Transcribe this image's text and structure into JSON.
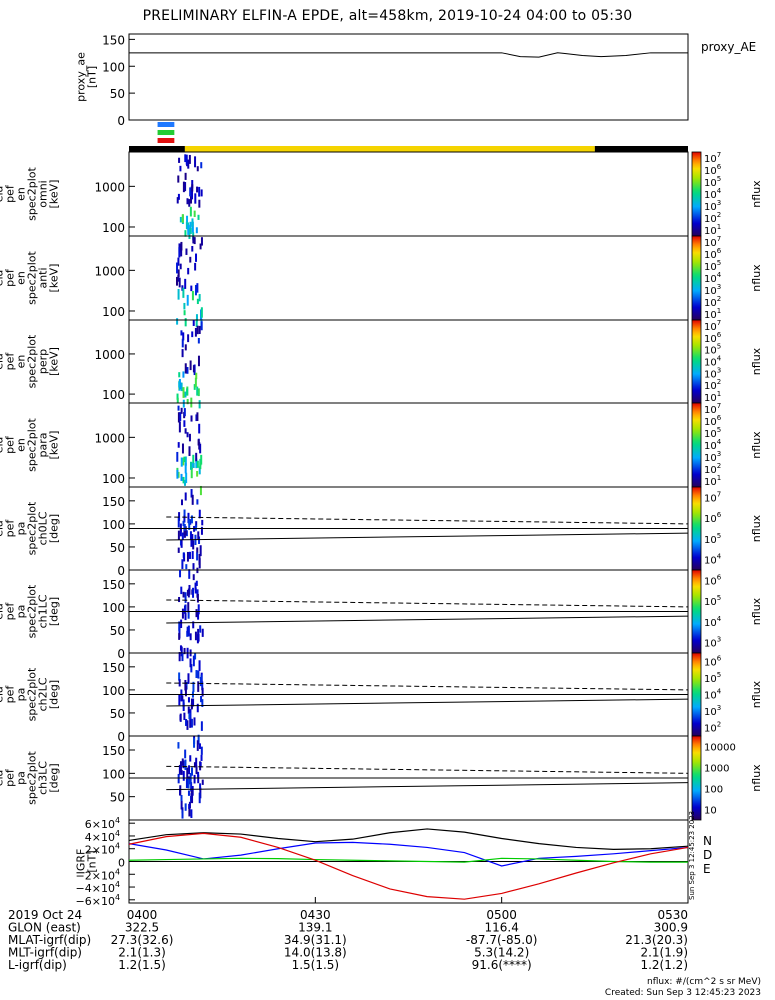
{
  "title": "PRELIMINARY ELFIN-A EPDE, alt=458km, 2019-10-24 04:00 to 05:30",
  "colors": {
    "flag_blue": "#1e78ff",
    "flag_green": "#22cc33",
    "flag_red": "#e01010",
    "bar_black": "#000000",
    "bar_yellow": "#f5d400",
    "bx": "#0000ff",
    "by": "#00cc00",
    "bz": "#dd0000",
    "btot": "#000000"
  },
  "chart_data": [
    {
      "type": "line",
      "panel": "proxy_ae",
      "ylabel_lines": [
        "proxy_ae",
        "[nT]"
      ],
      "legend": "proxy_AE",
      "ylim": [
        0,
        160
      ],
      "yticks": [
        "0",
        "50",
        "100",
        "150"
      ],
      "x_minutes": [
        0,
        60,
        63,
        66,
        69,
        70,
        73,
        76,
        80,
        84,
        88,
        90
      ],
      "values": [
        125,
        125,
        118,
        117,
        125,
        124,
        120,
        118,
        120,
        125,
        125,
        125
      ],
      "grid": false
    },
    {
      "type": "flags",
      "panel": "orbit-flags",
      "segments": [
        {
          "color": "black",
          "x_start": 0,
          "x_end": 9
        },
        {
          "color": "yellow",
          "x_start": 9,
          "x_end": 75
        },
        {
          "color": "black",
          "x_start": 75,
          "x_end": 90
        }
      ],
      "markers": [
        {
          "color": "blue",
          "x_start": 4.6,
          "x_end": 7.3
        },
        {
          "color": "green",
          "x_start": 4.6,
          "x_end": 7.3
        },
        {
          "color": "red",
          "x_start": 4.6,
          "x_end": 7.3
        }
      ]
    },
    {
      "type": "heatmap",
      "panel": "ela_pef_en_spec2plot_omni",
      "ylabel_lines": [
        "ela",
        "pef",
        "en",
        "spec2plot",
        "omni",
        "[keV]"
      ],
      "ylog": true,
      "ylim": [
        60,
        7000
      ],
      "yticks": [
        "100",
        "1000"
      ],
      "colorbar": {
        "label": "nflux",
        "scale": "log",
        "ticks": [
          "10",
          "10",
          "10",
          "10",
          "10",
          "10",
          "10"
        ],
        "exponents": [
          "1",
          "2",
          "3",
          "4",
          "5",
          "6",
          "7"
        ]
      }
    },
    {
      "type": "heatmap",
      "panel": "ela_pef_en_spec2plot_anti",
      "ylabel_lines": [
        "ela",
        "pef",
        "en",
        "spec2plot",
        "anti",
        "[keV]"
      ],
      "ylog": true,
      "ylim": [
        60,
        7000
      ],
      "yticks": [
        "100",
        "1000"
      ],
      "colorbar": {
        "label": "nflux",
        "scale": "log",
        "ticks": [
          "10",
          "10",
          "10",
          "10",
          "10",
          "10",
          "10"
        ],
        "exponents": [
          "1",
          "2",
          "3",
          "4",
          "5",
          "6",
          "7"
        ]
      }
    },
    {
      "type": "heatmap",
      "panel": "ela_pef_en_spec2plot_perp",
      "ylabel_lines": [
        "ela",
        "pef",
        "en",
        "spec2plot",
        "perp",
        "[keV]"
      ],
      "ylog": true,
      "ylim": [
        60,
        7000
      ],
      "yticks": [
        "100",
        "1000"
      ],
      "colorbar": {
        "label": "nflux",
        "scale": "log",
        "ticks": [
          "10",
          "10",
          "10",
          "10",
          "10",
          "10",
          "10"
        ],
        "exponents": [
          "1",
          "2",
          "3",
          "4",
          "5",
          "6",
          "7"
        ]
      }
    },
    {
      "type": "heatmap",
      "panel": "ela_pef_en_spec2plot_para",
      "ylabel_lines": [
        "ela",
        "pef",
        "en",
        "spec2plot",
        "para",
        "[keV]"
      ],
      "ylog": true,
      "ylim": [
        60,
        7000
      ],
      "yticks": [
        "100",
        "1000"
      ],
      "colorbar": {
        "label": "nflux",
        "scale": "log",
        "ticks": [
          "10",
          "10",
          "10",
          "10",
          "10",
          "10",
          "10"
        ],
        "exponents": [
          "1",
          "2",
          "3",
          "4",
          "5",
          "6",
          "7"
        ]
      }
    },
    {
      "type": "heatmap",
      "panel": "ela_pef_pa_spec2plot_ch0LC",
      "ylabel_lines": [
        "ela",
        "pef",
        "pa",
        "spec2plot",
        "ch0LC",
        "[deg]"
      ],
      "ylim": [
        0,
        180
      ],
      "yticks": [
        "0",
        "50",
        "100",
        "150"
      ],
      "lc_lines": {
        "x": [
          6,
          90
        ],
        "lc": [
          65,
          80
        ],
        "anti_lc": [
          115,
          100
        ],
        "ninety": [
          90,
          90
        ]
      },
      "colorbar": {
        "label": "nflux",
        "scale": "log",
        "ticks": [
          "10",
          "10",
          "10",
          "10"
        ],
        "exponents": [
          "4",
          "5",
          "6",
          "7"
        ]
      }
    },
    {
      "type": "heatmap",
      "panel": "ela_pef_pa_spec2plot_ch1LC",
      "ylabel_lines": [
        "ela",
        "pef",
        "pa",
        "spec2plot",
        "ch1LC",
        "[deg]"
      ],
      "ylim": [
        0,
        180
      ],
      "yticks": [
        "0",
        "50",
        "100",
        "150"
      ],
      "lc_lines": {
        "x": [
          6,
          90
        ],
        "lc": [
          65,
          80
        ],
        "anti_lc": [
          115,
          100
        ],
        "ninety": [
          90,
          90
        ]
      },
      "colorbar": {
        "label": "nflux",
        "scale": "log",
        "ticks": [
          "10",
          "10",
          "10",
          "10"
        ],
        "exponents": [
          "3",
          "4",
          "5",
          "6"
        ]
      }
    },
    {
      "type": "heatmap",
      "panel": "ela_pef_pa_spec2plot_ch2LC",
      "ylabel_lines": [
        "ela",
        "pef",
        "pa",
        "spec2plot",
        "ch2LC",
        "[deg]"
      ],
      "ylim": [
        0,
        180
      ],
      "yticks": [
        "0",
        "50",
        "100",
        "150"
      ],
      "lc_lines": {
        "x": [
          6,
          90
        ],
        "lc": [
          65,
          80
        ],
        "anti_lc": [
          115,
          100
        ],
        "ninety": [
          90,
          90
        ]
      },
      "colorbar": {
        "label": "nflux",
        "scale": "log",
        "ticks": [
          "10",
          "10",
          "10",
          "10",
          "10"
        ],
        "exponents": [
          "2",
          "3",
          "4",
          "5",
          "6"
        ]
      }
    },
    {
      "type": "heatmap",
      "panel": "ela_pef_pa_spec2plot_ch3LC",
      "ylabel_lines": [
        "ela",
        "pef",
        "pa",
        "spec2plot",
        "ch3LC",
        "[deg]"
      ],
      "ylim": [
        0,
        180
      ],
      "yticks": [
        "50",
        "100",
        "150"
      ],
      "lc_lines": {
        "x": [
          6,
          90
        ],
        "lc": [
          65,
          80
        ],
        "anti_lc": [
          115,
          100
        ],
        "ninety": [
          90,
          90
        ]
      },
      "colorbar": {
        "label": "nflux",
        "scale": "log",
        "ticks": [
          "10",
          "100",
          "1000",
          "10000"
        ],
        "exponents": [
          "",
          "",
          "",
          ""
        ]
      }
    },
    {
      "type": "line",
      "panel": "igrf",
      "ylabel_lines": [
        "IGRF",
        "[nT]"
      ],
      "ylim": [
        -65000,
        65000
      ],
      "yticks": [
        {
          "label": "−6×10",
          "exp": "4",
          "value": -60000
        },
        {
          "label": "−4×10",
          "exp": "4",
          "value": -40000
        },
        {
          "label": "−2×10",
          "exp": "4",
          "value": -20000
        },
        {
          "label": "0",
          "exp": "",
          "value": 0
        },
        {
          "label": "2×10",
          "exp": "4",
          "value": 20000
        },
        {
          "label": "4×10",
          "exp": "4",
          "value": 40000
        },
        {
          "label": "6×10",
          "exp": "4",
          "value": 60000
        }
      ],
      "legend_letters": [
        "N",
        "D",
        "E"
      ],
      "x_minutes": [
        0,
        6,
        12,
        18,
        24,
        30,
        36,
        42,
        48,
        54,
        60,
        66,
        72,
        78,
        84,
        90
      ],
      "series": [
        {
          "name": "",
          "color": "btot",
          "values": [
            33000,
            42000,
            45000,
            43000,
            36000,
            31000,
            35000,
            45000,
            51000,
            46000,
            36000,
            28000,
            22000,
            19000,
            20000,
            24000
          ]
        },
        {
          "name": "",
          "color": "bx",
          "values": [
            28000,
            18000,
            4000,
            10000,
            20000,
            29000,
            30000,
            27000,
            22000,
            14000,
            -7000,
            5000,
            8000,
            12000,
            17000,
            22000
          ]
        },
        {
          "name": "",
          "color": "by",
          "values": [
            2000,
            3000,
            4000,
            5000,
            4500,
            3000,
            2000,
            1000,
            0,
            -1000,
            5000,
            4000,
            2000,
            0,
            -1000,
            -1000
          ]
        },
        {
          "name": "",
          "color": "bz",
          "values": [
            27000,
            39000,
            44000,
            38000,
            22000,
            2000,
            -22000,
            -43000,
            -55000,
            -59000,
            -50000,
            -35000,
            -18000,
            -2000,
            12000,
            22000
          ]
        }
      ]
    }
  ],
  "time_axis": {
    "row_labels": [
      "2019 Oct 24",
      "GLON (east)",
      "MLAT-igrf(dip)",
      "MLT-igrf(dip)",
      "L-igrf(dip)"
    ],
    "ticks": [
      {
        "minute": 0,
        "values": [
          "0400",
          "322.5",
          "27.3(32.6)",
          "2.1(1.3)",
          "1.2(1.5)"
        ]
      },
      {
        "minute": 30,
        "values": [
          "0430",
          "139.1",
          "34.9(31.1)",
          "14.0(13.8)",
          "1.5(1.5)"
        ]
      },
      {
        "minute": 60,
        "values": [
          "0500",
          "116.4",
          "-87.7(-85.0)",
          "5.3(14.2)",
          "91.6(****)"
        ]
      },
      {
        "minute": 90,
        "values": [
          "0530",
          "300.9",
          "21.3(20.3)",
          "2.1(1.9)",
          "1.2(1.2)"
        ]
      }
    ]
  },
  "footer": {
    "units": "nflux: #/(cm^2 s sr MeV)",
    "created": "Created: Sun Sep  3 12:45:23 2023",
    "side_stamp": "Sun Sep  3 12:45:23 2023"
  }
}
